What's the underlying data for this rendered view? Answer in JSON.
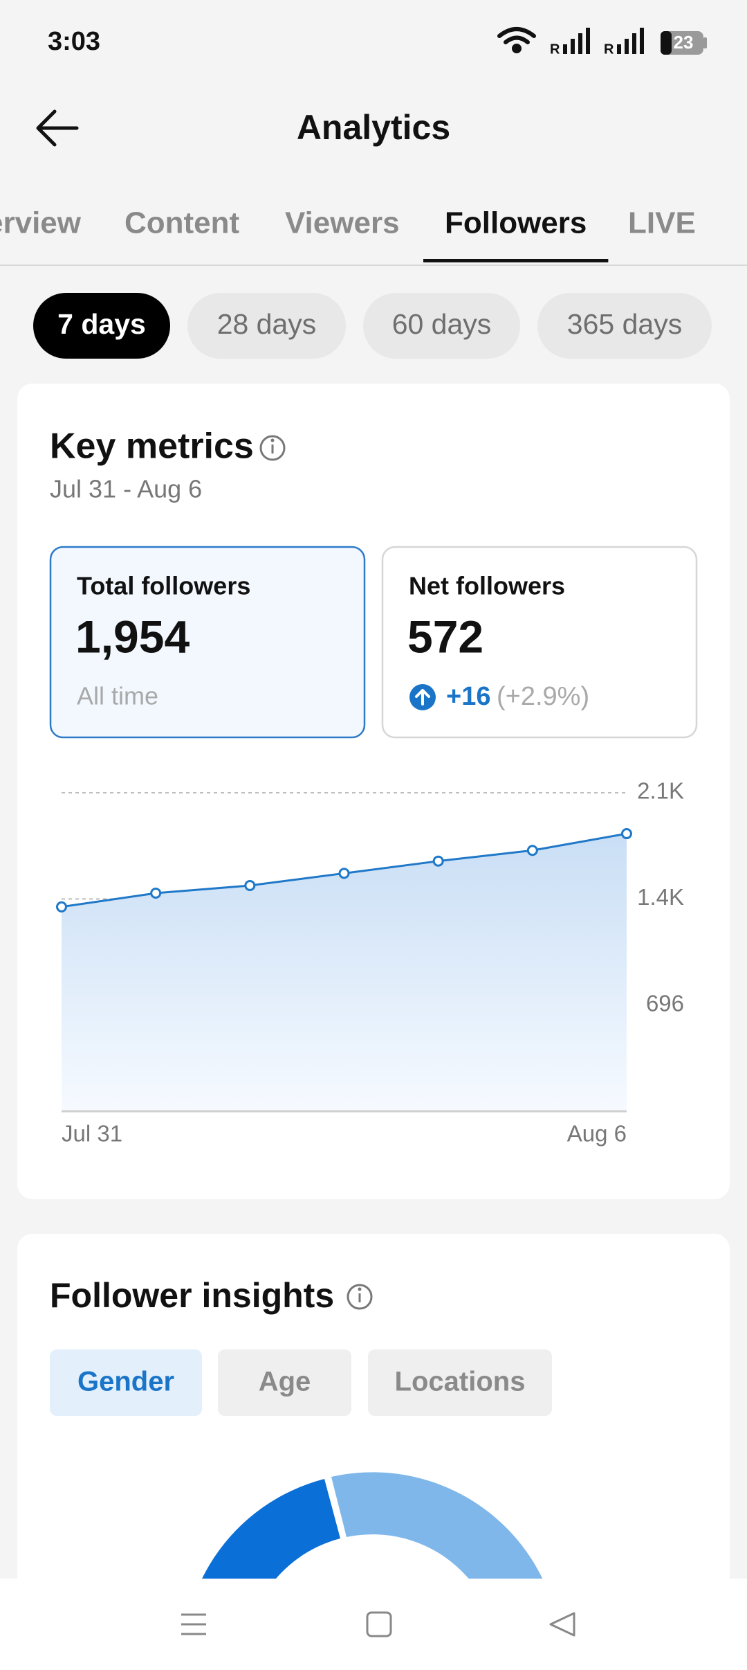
{
  "status_bar": {
    "time": "3:03",
    "roaming": [
      "R",
      "R"
    ],
    "battery": "23"
  },
  "header": {
    "title": "Analytics"
  },
  "tabs": [
    "Overview",
    "Content",
    "Viewers",
    "Followers",
    "LIVE"
  ],
  "active_tab": 3,
  "periods": [
    "7 days",
    "28 days",
    "60 days",
    "365 days"
  ],
  "active_period": 0,
  "key_metrics": {
    "title": "Key metrics",
    "date_range": "Jul 31 - Aug 6",
    "total": {
      "label": "Total followers",
      "value": "1,954",
      "note": "All time"
    },
    "net": {
      "label": "Net followers",
      "value": "572",
      "change": "+16",
      "change_pct": "(+2.9%)"
    }
  },
  "chart_data": {
    "type": "line",
    "categories": [
      "Jul 31",
      null,
      null,
      null,
      null,
      null,
      "Aug 6"
    ],
    "values": [
      1340,
      1430,
      1480,
      1560,
      1640,
      1710,
      1820
    ],
    "color": "#1f78c8",
    "ylim": [
      0,
      2088
    ],
    "yticks": [
      696,
      {
        "value": 1392,
        "label": "1.4K"
      },
      {
        "value": 2088,
        "label": "2.1K"
      }
    ],
    "grid": true
  },
  "follower_insights": {
    "title": "Follower insights",
    "tabs": [
      "Gender",
      "Age",
      "Locations"
    ],
    "active_tab": 0
  }
}
